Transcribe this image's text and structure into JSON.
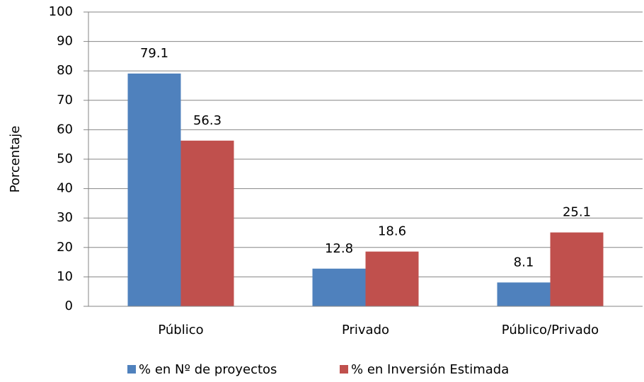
{
  "chart_data": {
    "type": "bar",
    "y_label": "Porcentaje",
    "categories": [
      "Público",
      "Privado",
      "Público/Privado"
    ],
    "series": [
      {
        "name": "% en Nº de proyectos",
        "color": "#4f81bd",
        "values": [
          79.1,
          12.8,
          8.1
        ]
      },
      {
        "name": "% en Inversión Estimada",
        "color": "#c0504d",
        "values": [
          56.3,
          18.6,
          25.1
        ]
      }
    ],
    "ylim": [
      0,
      100
    ],
    "yticks": [
      0,
      10,
      20,
      30,
      40,
      50,
      60,
      70,
      80,
      90,
      100
    ],
    "grid": true,
    "legend": "bottom"
  }
}
